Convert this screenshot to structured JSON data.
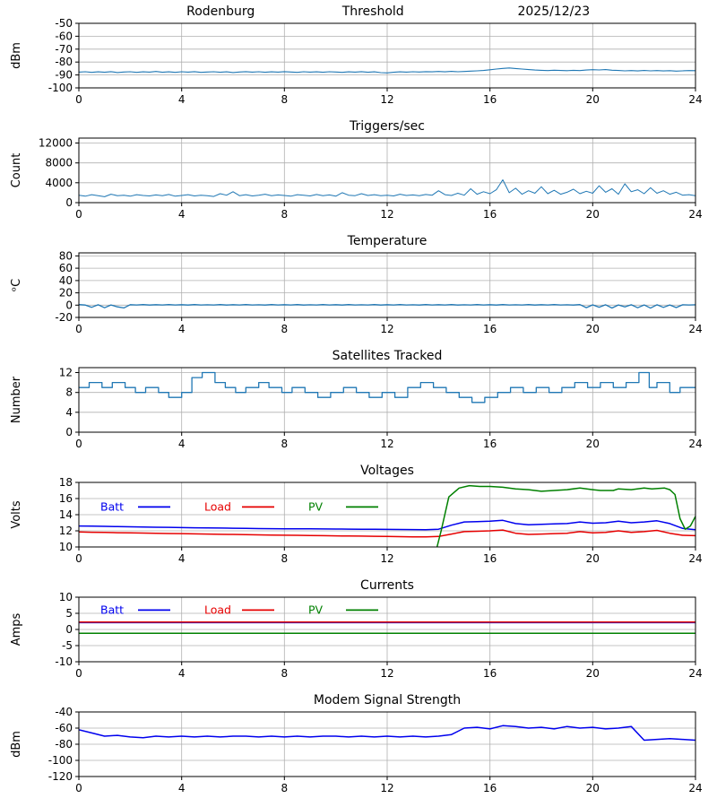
{
  "figure": {
    "background": "#ffffff",
    "grid_color": "#b0b0b0",
    "axis_color": "#000000"
  },
  "chart_data": [
    {
      "type": "line",
      "title": "Threshold",
      "header_left": "Rodenburg",
      "header_right": "2025/12/23",
      "ylabel": "dBm",
      "ylim": [
        -100,
        -50
      ],
      "yticks": [
        -100,
        -90,
        -80,
        -70,
        -60,
        -50
      ],
      "xlim": [
        0,
        24
      ],
      "xticks": [
        0,
        4,
        8,
        12,
        16,
        20,
        24
      ],
      "grid": true,
      "series": [
        {
          "name": "threshold",
          "color": "#1f77b4",
          "width": 1.1,
          "x0": 0,
          "dx": 0.25,
          "y": [
            -87.8,
            -87.5,
            -88.0,
            -87.6,
            -87.9,
            -87.4,
            -88.1,
            -87.7,
            -87.5,
            -88.0,
            -87.6,
            -87.8,
            -87.3,
            -87.9,
            -87.6,
            -88.0,
            -87.5,
            -87.8,
            -87.4,
            -88.0,
            -87.7,
            -87.5,
            -87.9,
            -87.6,
            -88.1,
            -87.7,
            -87.4,
            -87.8,
            -87.5,
            -87.9,
            -87.6,
            -87.8,
            -87.4,
            -87.7,
            -88.0,
            -87.5,
            -87.8,
            -87.6,
            -87.9,
            -87.5,
            -87.7,
            -88.0,
            -87.6,
            -87.8,
            -87.4,
            -87.9,
            -87.6,
            -88.2,
            -88.4,
            -87.9,
            -87.6,
            -87.8,
            -87.5,
            -87.7,
            -87.4,
            -87.6,
            -87.3,
            -87.6,
            -87.2,
            -87.5,
            -87.3,
            -87.0,
            -86.8,
            -86.5,
            -86.0,
            -85.4,
            -84.9,
            -84.6,
            -85.0,
            -85.4,
            -85.8,
            -86.2,
            -86.4,
            -86.6,
            -86.3,
            -86.5,
            -86.7,
            -86.4,
            -86.6,
            -86.2,
            -85.9,
            -86.1,
            -85.8,
            -86.3,
            -86.5,
            -86.8,
            -86.6,
            -86.9,
            -86.5,
            -86.8,
            -86.6,
            -86.9,
            -86.7,
            -87.0,
            -86.8,
            -86.6,
            -86.7
          ]
        }
      ]
    },
    {
      "type": "line",
      "title": "Triggers/sec",
      "ylabel": "Count",
      "ylim": [
        0,
        13000
      ],
      "yticks": [
        0,
        4000,
        8000,
        12000
      ],
      "xlim": [
        0,
        24
      ],
      "xticks": [
        0,
        4,
        8,
        12,
        16,
        20,
        24
      ],
      "grid": true,
      "series": [
        {
          "name": "triggers",
          "color": "#1f77b4",
          "width": 1.0,
          "x0": 0,
          "dx": 0.25,
          "y": [
            1500,
            1300,
            1600,
            1400,
            1200,
            1700,
            1400,
            1500,
            1300,
            1600,
            1450,
            1350,
            1550,
            1400,
            1650,
            1300,
            1450,
            1600,
            1350,
            1500,
            1400,
            1250,
            1800,
            1500,
            2200,
            1400,
            1600,
            1350,
            1500,
            1700,
            1400,
            1550,
            1450,
            1300,
            1600,
            1500,
            1350,
            1650,
            1400,
            1550,
            1300,
            2000,
            1500,
            1400,
            1800,
            1450,
            1600,
            1400,
            1500,
            1350,
            1700,
            1450,
            1550,
            1400,
            1650,
            1500,
            2400,
            1600,
            1450,
            1900,
            1500,
            2800,
            1700,
            2200,
            1800,
            2600,
            4600,
            2000,
            2900,
            1700,
            2400,
            1900,
            3200,
            1800,
            2500,
            1700,
            2100,
            2700,
            1800,
            2300,
            1900,
            3400,
            2100,
            2800,
            1700,
            3800,
            2200,
            2600,
            1800,
            3000,
            1900,
            2400,
            1700,
            2100,
            1500,
            1600,
            1400
          ]
        }
      ]
    },
    {
      "type": "line",
      "title": "Temperature",
      "ylabel": "ᵒC",
      "ylim": [
        -20,
        85
      ],
      "yticks": [
        -20,
        0,
        20,
        40,
        60,
        80
      ],
      "xlim": [
        0,
        24
      ],
      "xticks": [
        0,
        4,
        8,
        12,
        16,
        20,
        24
      ],
      "grid": true,
      "series": [
        {
          "name": "temperature",
          "color": "#1f77b4",
          "width": 1.3,
          "x0": 0,
          "dx": 0.25,
          "y": [
            0.8,
            0.1,
            -3.5,
            0.6,
            -4.2,
            0.2,
            -2.8,
            -4.6,
            0.7,
            0.2,
            0.8,
            0.1,
            0.7,
            0.3,
            0.8,
            0.2,
            0.7,
            0.1,
            0.8,
            0.3,
            0.6,
            0.2,
            0.8,
            0.1,
            0.7,
            0.3,
            0.8,
            0.2,
            0.6,
            0.1,
            0.8,
            0.3,
            0.7,
            0.2,
            0.8,
            0.1,
            0.6,
            0.3,
            0.8,
            0.2,
            0.7,
            0.1,
            0.8,
            0.3,
            0.6,
            0.2,
            0.8,
            0.1,
            0.7,
            0.3,
            0.8,
            0.2,
            0.6,
            0.1,
            0.8,
            0.3,
            0.7,
            0.2,
            0.8,
            0.1,
            0.6,
            0.3,
            0.8,
            0.2,
            0.7,
            0.1,
            0.8,
            0.3,
            0.6,
            0.2,
            0.8,
            0.1,
            0.7,
            0.3,
            0.8,
            0.2,
            0.6,
            0.1,
            0.8,
            -4.1,
            0.4,
            -3.4,
            0.6,
            -4.7,
            0.3,
            -2.9,
            0.5,
            -4.2,
            0.2,
            -4.8,
            0.5,
            -3.6,
            0.3,
            -4.0,
            0.6,
            0.2,
            0.5
          ]
        }
      ]
    },
    {
      "type": "line",
      "title": "Satellites Tracked",
      "ylabel": "Number",
      "ylim": [
        0,
        13
      ],
      "yticks": [
        0,
        4,
        8,
        12
      ],
      "xlim": [
        0,
        24
      ],
      "xticks": [
        0,
        4,
        8,
        12,
        16,
        20,
        24
      ],
      "grid": true,
      "series": [
        {
          "name": "satellites",
          "color": "#1f77b4",
          "width": 1.3,
          "step": true,
          "x": [
            0,
            0.4,
            0.9,
            1.3,
            1.8,
            2.2,
            2.6,
            3.1,
            3.5,
            4.0,
            4.4,
            4.8,
            5.3,
            5.7,
            6.1,
            6.5,
            7.0,
            7.4,
            7.9,
            8.3,
            8.8,
            9.3,
            9.8,
            10.3,
            10.8,
            11.3,
            11.8,
            12.3,
            12.8,
            13.3,
            13.8,
            14.3,
            14.8,
            15.3,
            15.8,
            16.3,
            16.8,
            17.3,
            17.8,
            18.3,
            18.8,
            19.3,
            19.8,
            20.3,
            20.8,
            21.3,
            21.8,
            22.2,
            22.5,
            23.0,
            23.4,
            23.7,
            24.0
          ],
          "y": [
            9,
            10,
            9,
            10,
            9,
            8,
            9,
            8,
            7,
            8,
            11,
            12,
            10,
            9,
            8,
            9,
            10,
            9,
            8,
            9,
            8,
            7,
            8,
            9,
            8,
            7,
            8,
            7,
            9,
            10,
            9,
            8,
            7,
            6,
            7,
            8,
            9,
            8,
            9,
            8,
            9,
            10,
            9,
            10,
            9,
            10,
            12,
            9,
            10,
            8,
            9,
            9,
            9
          ]
        }
      ]
    },
    {
      "type": "line",
      "title": "Voltages",
      "ylabel": "Volts",
      "ylim": [
        10,
        18
      ],
      "yticks": [
        10,
        12,
        14,
        16,
        18
      ],
      "xlim": [
        0,
        24
      ],
      "xticks": [
        0,
        4,
        8,
        12,
        16,
        20,
        24
      ],
      "grid": true,
      "legend": {
        "y_frac": 0.38,
        "items": [
          {
            "label": "Batt",
            "color": "#0000ee"
          },
          {
            "label": "Load",
            "color": "#e60000"
          },
          {
            "label": "PV",
            "color": "#008000"
          }
        ]
      },
      "series": [
        {
          "name": "batt-volts",
          "color": "#0000ee",
          "width": 1.5,
          "x0": 0,
          "dx": 0.5,
          "y": [
            12.6,
            12.58,
            12.55,
            12.52,
            12.5,
            12.48,
            12.45,
            12.43,
            12.4,
            12.38,
            12.36,
            12.34,
            12.32,
            12.3,
            12.28,
            12.27,
            12.26,
            12.25,
            12.24,
            12.23,
            12.22,
            12.21,
            12.2,
            12.19,
            12.18,
            12.17,
            12.16,
            12.15,
            12.2,
            12.7,
            13.1,
            13.15,
            13.2,
            13.3,
            12.9,
            12.75,
            12.8,
            12.85,
            12.9,
            13.1,
            12.95,
            13.0,
            13.2,
            13.0,
            13.1,
            13.25,
            12.9,
            12.3,
            12.15
          ]
        },
        {
          "name": "load-volts",
          "color": "#e60000",
          "width": 1.5,
          "x0": 0,
          "dx": 0.5,
          "y": [
            11.85,
            11.82,
            11.8,
            11.77,
            11.75,
            11.72,
            11.7,
            11.67,
            11.65,
            11.62,
            11.6,
            11.57,
            11.55,
            11.52,
            11.5,
            11.48,
            11.46,
            11.44,
            11.42,
            11.4,
            11.38,
            11.36,
            11.34,
            11.32,
            11.3,
            11.28,
            11.26,
            11.24,
            11.3,
            11.6,
            11.9,
            11.95,
            12.0,
            12.1,
            11.7,
            11.55,
            11.6,
            11.65,
            11.7,
            11.9,
            11.75,
            11.8,
            12.0,
            11.8,
            11.9,
            12.05,
            11.7,
            11.45,
            11.4
          ]
        },
        {
          "name": "pv-volts",
          "color": "#008000",
          "width": 1.5,
          "x": [
            0,
            13.5,
            13.9,
            14.1,
            14.4,
            14.8,
            15.2,
            15.6,
            16,
            16.5,
            17,
            17.5,
            18,
            18.5,
            19,
            19.5,
            20,
            20.3,
            20.8,
            21,
            21.5,
            22,
            22.3,
            22.8,
            23,
            23.2,
            23.4,
            23.6,
            23.8,
            24
          ],
          "y": [
            9,
            9,
            9.5,
            12,
            16.2,
            17.3,
            17.6,
            17.5,
            17.5,
            17.4,
            17.2,
            17.1,
            16.9,
            17.0,
            17.1,
            17.3,
            17.1,
            17.0,
            17.0,
            17.2,
            17.1,
            17.3,
            17.2,
            17.3,
            17.1,
            16.5,
            13.5,
            12.2,
            12.6,
            13.8
          ]
        }
      ]
    },
    {
      "type": "line",
      "title": "Currents",
      "ylabel": "Amps",
      "ylim": [
        -10,
        10
      ],
      "yticks": [
        -10,
        -5,
        0,
        5,
        10
      ],
      "xlim": [
        0,
        24
      ],
      "xticks": [
        0,
        4,
        8,
        12,
        16,
        20,
        24
      ],
      "grid": true,
      "legend": {
        "y_frac": 0.2,
        "items": [
          {
            "label": "Batt",
            "color": "#0000ee"
          },
          {
            "label": "Load",
            "color": "#e60000"
          },
          {
            "label": "PV",
            "color": "#008000"
          }
        ]
      },
      "series": [
        {
          "name": "batt-amps",
          "color": "#0000ee",
          "width": 1.5,
          "y_const": 2.1
        },
        {
          "name": "load-amps",
          "color": "#e60000",
          "width": 1.5,
          "y_const": 2.3
        },
        {
          "name": "pv-amps",
          "color": "#008000",
          "width": 1.5,
          "y_const": -1.2
        }
      ]
    },
    {
      "type": "line",
      "title": "Modem Signal Strength",
      "ylabel": "dBm",
      "ylim": [
        -120,
        -40
      ],
      "yticks": [
        -120,
        -100,
        -80,
        -60,
        -40
      ],
      "xlim": [
        0,
        24
      ],
      "xticks": [
        0,
        4,
        8,
        12,
        16,
        20,
        24
      ],
      "grid": true,
      "series": [
        {
          "name": "modem-signal",
          "color": "#0000ee",
          "width": 1.5,
          "x0": 0,
          "dx": 0.5,
          "y": [
            -62,
            -66,
            -70,
            -69,
            -71,
            -72,
            -70,
            -71,
            -70,
            -71,
            -70,
            -71,
            -70,
            -70,
            -71,
            -70,
            -71,
            -70,
            -71,
            -70,
            -70,
            -71,
            -70,
            -71,
            -70,
            -71,
            -70,
            -71,
            -70,
            -68,
            -60,
            -59,
            -61,
            -57,
            -58,
            -60,
            -59,
            -61,
            -58,
            -60,
            -59,
            -61,
            -60,
            -58,
            -75,
            -74,
            -73,
            -74,
            -75
          ]
        }
      ]
    }
  ]
}
